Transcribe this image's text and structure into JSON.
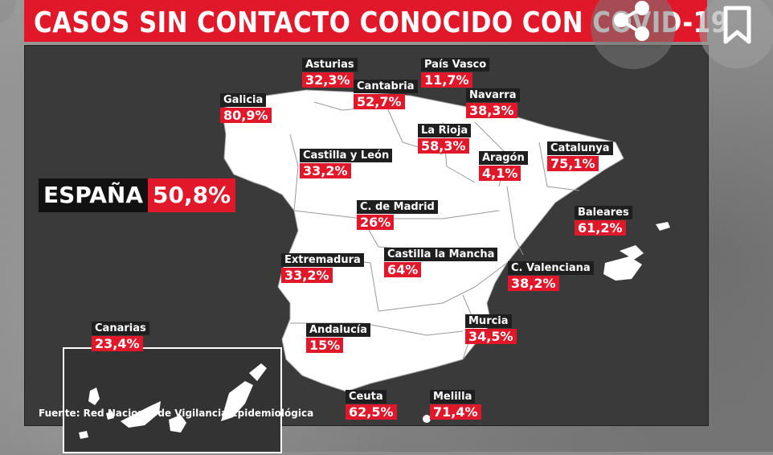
{
  "title": "CASOS SIN CONTACTO CONOCIDO CON COVID-19",
  "national": {
    "name": "ESPAÑA",
    "value": "50,8%"
  },
  "regions": {
    "asturias": {
      "name": "Asturias",
      "value": "32,3%"
    },
    "pais_vasco": {
      "name": "País Vasco",
      "value": "11,7%"
    },
    "cantabria": {
      "name": "Cantabria",
      "value": "52,7%"
    },
    "galicia": {
      "name": "Galicia",
      "value": "80,9%"
    },
    "navarra": {
      "name": "Navarra",
      "value": "38,3%"
    },
    "la_rioja": {
      "name": "La Rioja",
      "value": "58,3%"
    },
    "castilla_leon": {
      "name": "Castilla y León",
      "value": "33,2%"
    },
    "aragon": {
      "name": "Aragón",
      "value": "4,1%"
    },
    "catalunya": {
      "name": "Catalunya",
      "value": "75,1%"
    },
    "madrid": {
      "name": "C. de Madrid",
      "value": "26%"
    },
    "baleares": {
      "name": "Baleares",
      "value": "61,2%"
    },
    "extremadura": {
      "name": "Extremadura",
      "value": "33,2%"
    },
    "castilla_mancha": {
      "name": "Castilla la Mancha",
      "value": "64%"
    },
    "valenciana": {
      "name": "C. Valenciana",
      "value": "38,2%"
    },
    "canarias": {
      "name": "Canarias",
      "value": "23,4%"
    },
    "andalucia": {
      "name": "Andalucía",
      "value": "15%"
    },
    "murcia": {
      "name": "Murcia",
      "value": "34,5%"
    },
    "ceuta": {
      "name": "Ceuta",
      "value": "62,5%"
    },
    "melilla": {
      "name": "Melilla",
      "value": "71,4%"
    }
  },
  "source": "Fuente: Red Nacional de Vigilancia Epidemiológica",
  "icons": {
    "share": "share-icon",
    "bookmark": "bookmark-icon"
  },
  "colors": {
    "accent": "#e1182a",
    "label_bg": "#1f1f1f",
    "map_fill": "#ffffff",
    "panel": "#3a3a3a"
  }
}
